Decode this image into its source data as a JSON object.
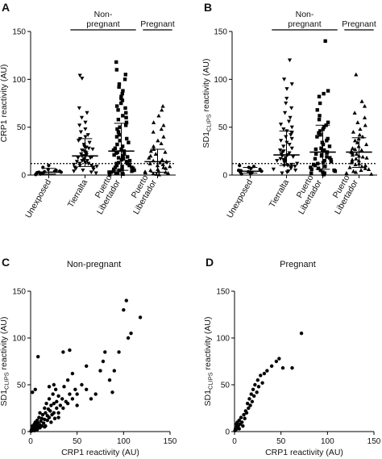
{
  "chart_data": [
    {
      "panel": "A",
      "type": "scatter",
      "ylabel": "CRP1 reactivity (AU)",
      "ylim": [
        0,
        150
      ],
      "yticks": [
        "0",
        "50",
        "100",
        "150"
      ],
      "categories": [
        "Unexposed",
        "Tierralta",
        "Puerto Libertador",
        "Puerto Libertador"
      ],
      "groups": [
        {
          "label": "Non-pregnant",
          "categories": [
            1,
            2
          ]
        },
        {
          "label": "Pregnant",
          "categories": [
            3
          ]
        }
      ],
      "threshold": 12,
      "series": [
        {
          "marker": "circle",
          "median": 3,
          "spread": [
            1,
            7
          ],
          "values": [
            0.5,
            1,
            1.5,
            2,
            2,
            2.5,
            3,
            3,
            3.5,
            4,
            4,
            5,
            6,
            8,
            10
          ]
        },
        {
          "marker": "triangle-down",
          "median": 20,
          "spread": [
            9,
            38
          ],
          "values": [
            2,
            3,
            4,
            5,
            6,
            7,
            8,
            8,
            9,
            10,
            10,
            11,
            12,
            12,
            13,
            14,
            15,
            15,
            16,
            17,
            18,
            18,
            19,
            20,
            20,
            21,
            22,
            23,
            24,
            25,
            26,
            27,
            28,
            29,
            30,
            32,
            34,
            36,
            38,
            40,
            42,
            45,
            48,
            52,
            55,
            60,
            65,
            70,
            101,
            104
          ]
        },
        {
          "marker": "square",
          "median": 25,
          "spread": [
            5,
            54
          ],
          "values": [
            0.5,
            1,
            1.5,
            2,
            2,
            3,
            3,
            4,
            4,
            5,
            5,
            6,
            6,
            7,
            8,
            8,
            9,
            10,
            10,
            11,
            12,
            12,
            13,
            14,
            15,
            16,
            17,
            18,
            19,
            20,
            21,
            22,
            23,
            24,
            25,
            26,
            27,
            28,
            30,
            32,
            34,
            36,
            38,
            40,
            42,
            45,
            48,
            50,
            52,
            55,
            58,
            60,
            62,
            65,
            68,
            70,
            72,
            75,
            78,
            80,
            82,
            85,
            88,
            92,
            95,
            100,
            105,
            110,
            118
          ]
        },
        {
          "marker": "triangle-up",
          "median": 14,
          "spread": [
            3,
            27
          ],
          "values": [
            0.5,
            1,
            1.5,
            2,
            2.5,
            3,
            3.5,
            4,
            5,
            6,
            7,
            8,
            9,
            10,
            11,
            12,
            13,
            14,
            15,
            16,
            18,
            20,
            22,
            24,
            25,
            27,
            30,
            33,
            36,
            40,
            45,
            48,
            52,
            55,
            62,
            68,
            72
          ]
        }
      ]
    },
    {
      "panel": "B",
      "type": "scatter",
      "ylabel_main": "SD1",
      "ylabel_sub": "CLIPS",
      "ylabel_rest": " reactivity (AU)",
      "ylim": [
        0,
        150
      ],
      "yticks": [
        "0",
        "50",
        "100",
        "150"
      ],
      "categories": [
        "Unexposed",
        "Tierralta",
        "Puerto Libertador",
        "Puerto Libertador"
      ],
      "groups": [
        {
          "label": "Non-pregnant",
          "categories": [
            1,
            2
          ]
        },
        {
          "label": "Pregnant",
          "categories": [
            3
          ]
        }
      ],
      "threshold": 12,
      "series": [
        {
          "marker": "circle",
          "median": 4,
          "spread": [
            2,
            8
          ],
          "values": [
            1,
            2,
            2.5,
            3,
            3.5,
            4,
            4.5,
            5,
            6,
            7,
            8,
            9,
            10
          ]
        },
        {
          "marker": "triangle-down",
          "median": 21,
          "spread": [
            10,
            46
          ],
          "values": [
            2,
            3,
            4,
            5,
            6,
            7,
            8,
            9,
            10,
            10,
            11,
            12,
            13,
            14,
            15,
            15,
            16,
            17,
            18,
            19,
            20,
            21,
            22,
            23,
            24,
            25,
            26,
            28,
            30,
            32,
            34,
            36,
            38,
            40,
            42,
            44,
            46,
            48,
            50,
            53,
            56,
            60,
            65,
            70,
            75,
            80,
            90,
            95,
            100,
            120
          ]
        },
        {
          "marker": "square",
          "median": 24,
          "spread": [
            6,
            52
          ],
          "values": [
            0.5,
            1,
            2,
            2,
            3,
            4,
            5,
            5,
            6,
            7,
            8,
            9,
            10,
            11,
            12,
            13,
            14,
            15,
            16,
            17,
            18,
            19,
            20,
            21,
            22,
            23,
            24,
            25,
            26,
            27,
            28,
            30,
            32,
            34,
            36,
            38,
            40,
            42,
            44,
            46,
            48,
            50,
            52,
            55,
            58,
            62,
            68,
            75,
            82,
            85,
            88,
            140
          ]
        },
        {
          "marker": "triangle-up",
          "median": 24,
          "spread": [
            8,
            39
          ],
          "values": [
            1,
            2,
            3,
            4,
            5,
            6,
            7,
            8,
            9,
            10,
            11,
            12,
            13,
            14,
            15,
            16,
            17,
            18,
            19,
            20,
            21,
            22,
            23,
            24,
            25,
            26,
            27,
            28,
            30,
            32,
            34,
            36,
            38,
            40,
            42,
            45,
            48,
            52,
            55,
            60,
            65,
            72,
            77,
            105
          ]
        }
      ]
    },
    {
      "panel": "C",
      "type": "scatter",
      "title": "Non-pregnant",
      "xlabel": "CRP1 reactivity (AU)",
      "ylabel_main": "SD1",
      "ylabel_sub": "CLIPS",
      "ylabel_rest": " reactivity (AU)",
      "xlim": [
        0,
        150
      ],
      "ylim": [
        0,
        150
      ],
      "xticks": [
        "0",
        "50",
        "100",
        "150"
      ],
      "yticks": [
        "0",
        "50",
        "100",
        "150"
      ],
      "points": [
        [
          0.5,
          0.5
        ],
        [
          1,
          2
        ],
        [
          1.5,
          1
        ],
        [
          2,
          3
        ],
        [
          2,
          6
        ],
        [
          3,
          2
        ],
        [
          3,
          5
        ],
        [
          4,
          1
        ],
        [
          4,
          8
        ],
        [
          5,
          4
        ],
        [
          5,
          10
        ],
        [
          6,
          3
        ],
        [
          6,
          7
        ],
        [
          7,
          12
        ],
        [
          7,
          2
        ],
        [
          8,
          5
        ],
        [
          8,
          9
        ],
        [
          9,
          15
        ],
        [
          10,
          4
        ],
        [
          10,
          7
        ],
        [
          10,
          20
        ],
        [
          11,
          11
        ],
        [
          12,
          6
        ],
        [
          12,
          14
        ],
        [
          13,
          18
        ],
        [
          14,
          9
        ],
        [
          15,
          13
        ],
        [
          15,
          25
        ],
        [
          16,
          6
        ],
        [
          16,
          20
        ],
        [
          17,
          30
        ],
        [
          18,
          12
        ],
        [
          18,
          17
        ],
        [
          19,
          24
        ],
        [
          20,
          15
        ],
        [
          20,
          35
        ],
        [
          21,
          22
        ],
        [
          22,
          10
        ],
        [
          22,
          28
        ],
        [
          23,
          18
        ],
        [
          24,
          40
        ],
        [
          25,
          20
        ],
        [
          25,
          30
        ],
        [
          26,
          14
        ],
        [
          27,
          45
        ],
        [
          28,
          25
        ],
        [
          28,
          32
        ],
        [
          30,
          20
        ],
        [
          30,
          38
        ],
        [
          32,
          28
        ],
        [
          34,
          35
        ],
        [
          35,
          25
        ],
        [
          36,
          48
        ],
        [
          38,
          32
        ],
        [
          40,
          30
        ],
        [
          40,
          55
        ],
        [
          42,
          40
        ],
        [
          45,
          35
        ],
        [
          45,
          62
        ],
        [
          48,
          45
        ],
        [
          50,
          40
        ],
        [
          55,
          50
        ],
        [
          60,
          45
        ],
        [
          60,
          70
        ],
        [
          8,
          80
        ],
        [
          35,
          85
        ],
        [
          42,
          87
        ],
        [
          70,
          40
        ],
        [
          75,
          65
        ],
        [
          78,
          75
        ],
        [
          80,
          85
        ],
        [
          85,
          55
        ],
        [
          88,
          42
        ],
        [
          90,
          65
        ],
        [
          95,
          85
        ],
        [
          100,
          130
        ],
        [
          103,
          140
        ],
        [
          105,
          100
        ],
        [
          108,
          105
        ],
        [
          118,
          122
        ],
        [
          2,
          42
        ],
        [
          5,
          45
        ],
        [
          20,
          48
        ],
        [
          25,
          50
        ],
        [
          15,
          5
        ],
        [
          30,
          15
        ],
        [
          50,
          28
        ],
        [
          65,
          35
        ]
      ]
    },
    {
      "panel": "D",
      "type": "scatter",
      "title": "Pregnant",
      "xlabel": "CRP1 reactivity (AU)",
      "ylabel_main": "SD1",
      "ylabel_sub": "CLIPS",
      "ylabel_rest": " reactivity (AU)",
      "xlim": [
        0,
        150
      ],
      "ylim": [
        0,
        150
      ],
      "xticks": [
        "0",
        "50",
        "100",
        "150"
      ],
      "yticks": [
        "0",
        "50",
        "100",
        "150"
      ],
      "points": [
        [
          0.5,
          1
        ],
        [
          1,
          3
        ],
        [
          1.5,
          2
        ],
        [
          2,
          5
        ],
        [
          2,
          8
        ],
        [
          3,
          4
        ],
        [
          3,
          10
        ],
        [
          4,
          6
        ],
        [
          5,
          12
        ],
        [
          5,
          3
        ],
        [
          6,
          8
        ],
        [
          7,
          15
        ],
        [
          8,
          10
        ],
        [
          9,
          6
        ],
        [
          10,
          18
        ],
        [
          11,
          14
        ],
        [
          12,
          22
        ],
        [
          13,
          20
        ],
        [
          14,
          30
        ],
        [
          15,
          25
        ],
        [
          16,
          35
        ],
        [
          17,
          28
        ],
        [
          18,
          40
        ],
        [
          19,
          32
        ],
        [
          20,
          45
        ],
        [
          21,
          38
        ],
        [
          22,
          50
        ],
        [
          24,
          42
        ],
        [
          25,
          55
        ],
        [
          26,
          48
        ],
        [
          28,
          60
        ],
        [
          30,
          52
        ],
        [
          32,
          62
        ],
        [
          35,
          65
        ],
        [
          40,
          70
        ],
        [
          45,
          75
        ],
        [
          48,
          78
        ],
        [
          52,
          68
        ],
        [
          62,
          68
        ],
        [
          72,
          105
        ]
      ]
    }
  ]
}
